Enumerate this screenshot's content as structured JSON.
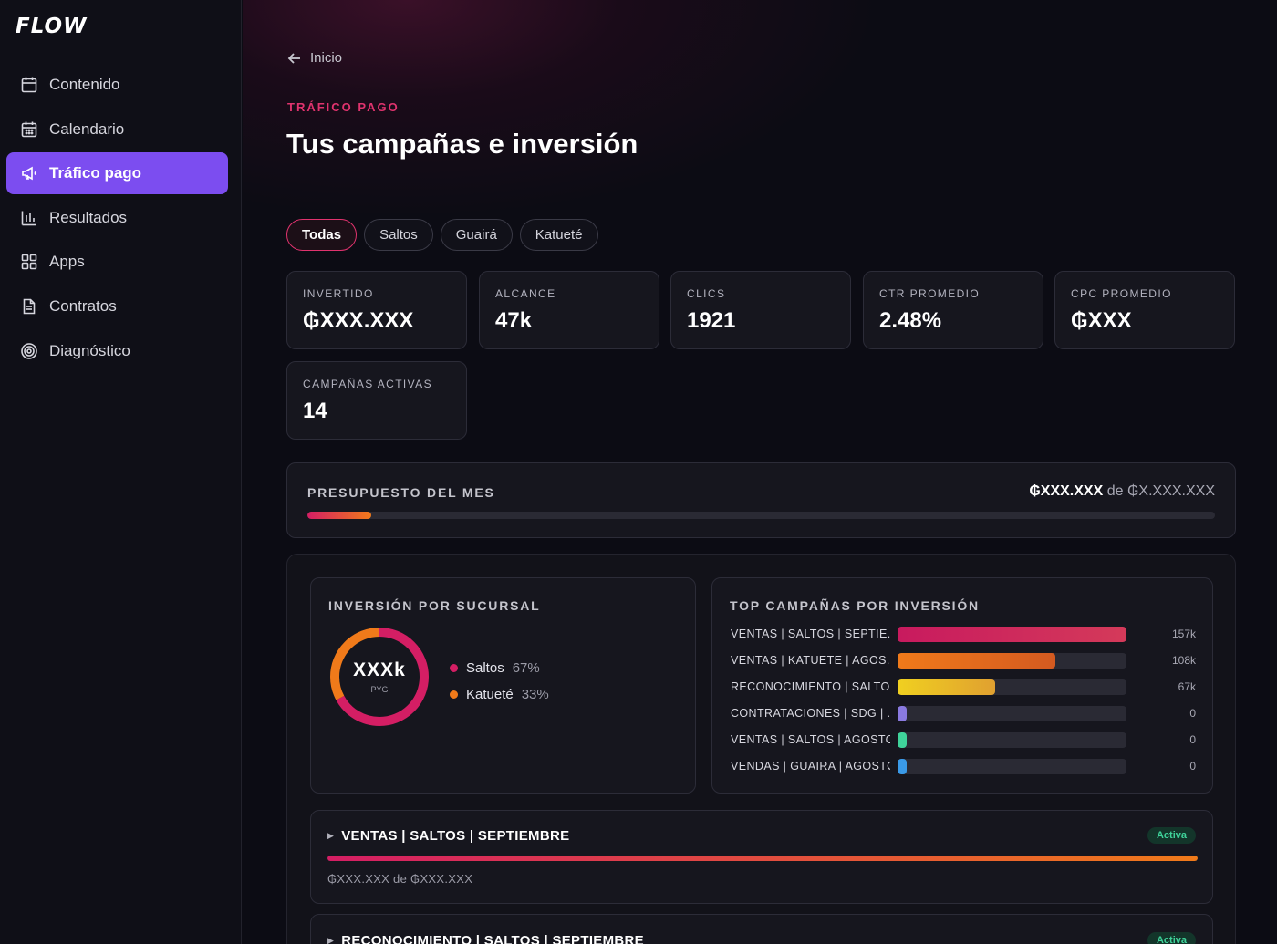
{
  "app": {
    "logo": "FLOW"
  },
  "sidebar": {
    "items": [
      {
        "label": "Contenido",
        "icon": "calendar-icon"
      },
      {
        "label": "Calendario",
        "icon": "calendar-grid-icon"
      },
      {
        "label": "Tráfico pago",
        "icon": "megaphone-icon",
        "active": true
      },
      {
        "label": "Resultados",
        "icon": "bar-chart-icon"
      },
      {
        "label": "Apps",
        "icon": "grid-icon"
      },
      {
        "label": "Contratos",
        "icon": "document-icon"
      },
      {
        "label": "Diagnóstico",
        "icon": "target-icon"
      }
    ]
  },
  "header": {
    "back_label": "Inicio",
    "eyebrow": "TRÁFICO PAGO",
    "title": "Tus campañas e inversión"
  },
  "filters": [
    {
      "label": "Todas",
      "active": true
    },
    {
      "label": "Saltos"
    },
    {
      "label": "Guairá"
    },
    {
      "label": "Katueté"
    }
  ],
  "stats": [
    {
      "label": "INVERTIDO",
      "value": "₲XXX.XXX"
    },
    {
      "label": "ALCANCE",
      "value": "47k"
    },
    {
      "label": "CLICS",
      "value": "1921"
    },
    {
      "label": "CTR PROMEDIO",
      "value": "2.48%"
    },
    {
      "label": "CPC PROMEDIO",
      "value": "₲XXX"
    },
    {
      "label": "CAMPAÑAS ACTIVAS",
      "value": "14"
    }
  ],
  "budget": {
    "label": "PRESUPUESTO DEL MES",
    "spent": "₲XXX.XXX",
    "sep": "de",
    "total": "₲X.XXX.XXX",
    "progress": 0.07
  },
  "sucursal": {
    "title": "INVERSIÓN POR SUCURSAL",
    "center_value": "XXXk",
    "center_unit": "PYG",
    "segments": [
      {
        "name": "Saltos",
        "pct": "67%",
        "value": 67,
        "color": "#d41e64"
      },
      {
        "name": "Katueté",
        "pct": "33%",
        "value": 33,
        "color": "#f07a1a"
      }
    ]
  },
  "top_campaigns": {
    "title": "TOP CAMPAÑAS POR INVERSIÓN",
    "max": 157,
    "items": [
      {
        "name": "VENTAS | SALTOS | SEPTIE...",
        "value": 157,
        "label": "157k",
        "color_from": "#c81a5e",
        "color_to": "#d43a5a"
      },
      {
        "name": "VENTAS | KATUETE | AGOS...",
        "value": 108,
        "label": "108k",
        "color_from": "#f07a1a",
        "color_to": "#d45a20"
      },
      {
        "name": "RECONOCIMIENTO | SALTO...",
        "value": 67,
        "label": "67k",
        "color_from": "#f0d020",
        "color_to": "#e0a030"
      },
      {
        "name": "CONTRATACIONES | SDG | ...",
        "value": 0,
        "label": "0",
        "color_from": "#8a7ae0",
        "color_to": "#8a7ae0"
      },
      {
        "name": "VENTAS | SALTOS | AGOSTO",
        "value": 0,
        "label": "0",
        "color_from": "#3fd39a",
        "color_to": "#3fd39a"
      },
      {
        "name": "VENDAS | GUAIRA | AGOSTO",
        "value": 0,
        "label": "0",
        "color_from": "#3a9ae8",
        "color_to": "#3a9ae8"
      }
    ]
  },
  "campaign_cards": [
    {
      "name": "VENTAS | SALTOS | SEPTIEMBRE",
      "status": "Activa",
      "spent_text": "₲XXX.XXX de ₲XXX.XXX",
      "progress": 1.0
    },
    {
      "name": "RECONOCIMIENTO | SALTOS | SEPTIEMBRE",
      "status": "Activa"
    }
  ]
}
